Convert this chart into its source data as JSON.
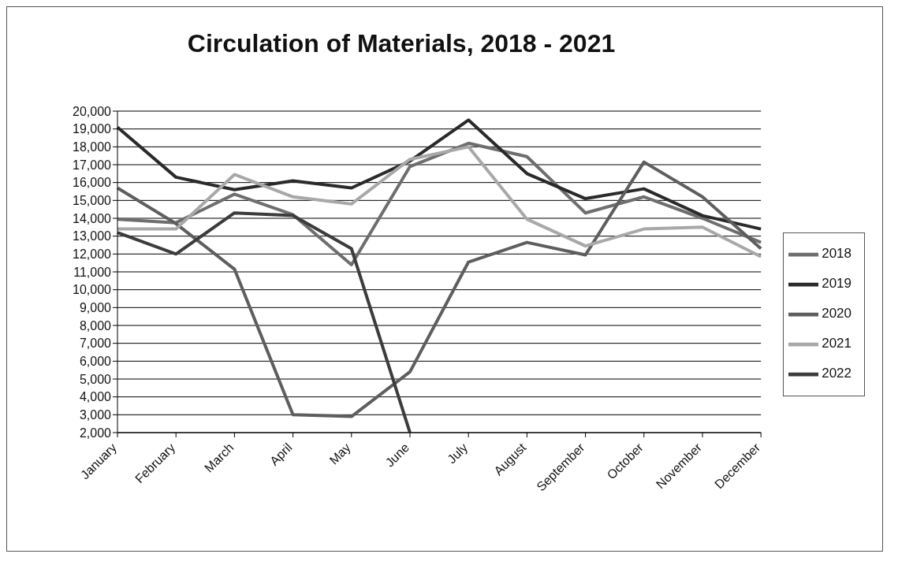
{
  "chart_data": {
    "type": "line",
    "title": "Circulation of Materials, 2018 - 2021",
    "categories": [
      "January",
      "February",
      "March",
      "April",
      "May",
      "June",
      "July",
      "August",
      "September",
      "October",
      "November",
      "December"
    ],
    "series": [
      {
        "name": "2018",
        "color": "#6e6e6e",
        "values": [
          13950,
          13750,
          15350,
          14200,
          11400,
          16900,
          18200,
          17450,
          14300,
          15200,
          14000,
          12650
        ]
      },
      {
        "name": "2019",
        "color": "#2a2a2a",
        "values": [
          19100,
          16300,
          15600,
          16100,
          15700,
          17200,
          19500,
          16500,
          15100,
          15650,
          14150,
          13400
        ]
      },
      {
        "name": "2020",
        "color": "#5e5e5e",
        "values": [
          15700,
          13700,
          11150,
          3000,
          2900,
          5400,
          11550,
          12650,
          11950,
          17150,
          15200,
          12300
        ]
      },
      {
        "name": "2021",
        "color": "#a8a8a8",
        "values": [
          13400,
          13400,
          16450,
          15200,
          14800,
          17300,
          18000,
          13950,
          12450,
          13400,
          13500,
          11850
        ]
      },
      {
        "name": "2022",
        "color": "#3c3c3c",
        "values": [
          13200,
          12000,
          14300,
          14150,
          12300,
          2000,
          null,
          null,
          null,
          null,
          null,
          null
        ]
      }
    ],
    "ylim": [
      2000,
      20000
    ],
    "yticks": [
      {
        "value": 2000,
        "label": "2,000"
      },
      {
        "value": 3000,
        "label": "3,000"
      },
      {
        "value": 4000,
        "label": "4,000"
      },
      {
        "value": 5000,
        "label": "5,000"
      },
      {
        "value": 6000,
        "label": "6,000"
      },
      {
        "value": 7000,
        "label": "7,000"
      },
      {
        "value": 8000,
        "label": "8,000"
      },
      {
        "value": 9000,
        "label": "9,000"
      },
      {
        "value": 10000,
        "label": "10,000"
      },
      {
        "value": 11000,
        "label": "11,000"
      },
      {
        "value": 12000,
        "label": "12,000"
      },
      {
        "value": 13000,
        "label": "13,000"
      },
      {
        "value": 14000,
        "label": "14,000"
      },
      {
        "value": 15000,
        "label": "15,000"
      },
      {
        "value": 16000,
        "label": "16,000"
      },
      {
        "value": 17000,
        "label": "17,000"
      },
      {
        "value": 18000,
        "label": "18,000"
      },
      {
        "value": 19000,
        "label": "19,000"
      },
      {
        "value": 20000,
        "label": "20,000"
      }
    ],
    "grid": "y",
    "legend": "right",
    "marker": "none",
    "line_style": "solid"
  }
}
